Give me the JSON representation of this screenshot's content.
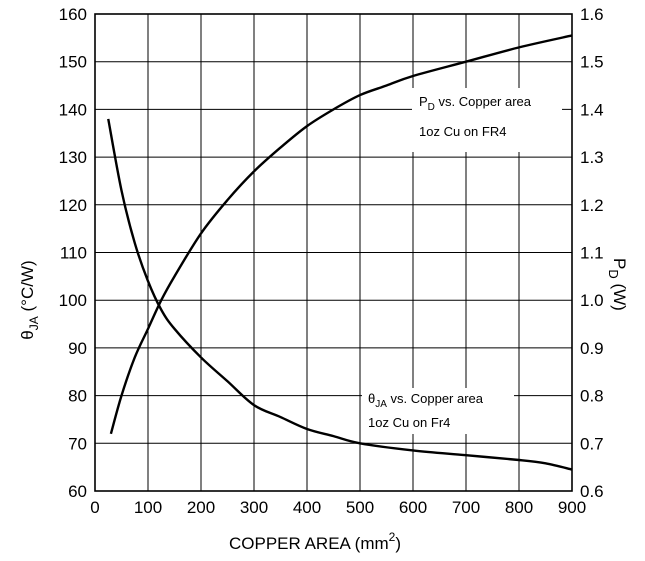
{
  "chart_data": {
    "type": "line",
    "xlabel": {
      "main": "COPPER AREA (mm",
      "sup": "2",
      "tail": ")"
    },
    "ylabel_left": {
      "main": "θ",
      "sub": "JA",
      "tail": " (°C/W)"
    },
    "ylabel_right": {
      "main": "P",
      "sub": "D",
      "tail": " (W)"
    },
    "xlim": [
      0,
      900
    ],
    "ylim_left": [
      60,
      160
    ],
    "ylim_right": [
      0.6,
      1.6
    ],
    "x_ticks": [
      "0",
      "100",
      "200",
      "300",
      "400",
      "500",
      "600",
      "700",
      "800",
      "900"
    ],
    "y_left_ticks": [
      "60",
      "70",
      "80",
      "90",
      "100",
      "110",
      "120",
      "130",
      "140",
      "150",
      "160"
    ],
    "y_right_ticks": [
      "0.6",
      "0.7",
      "0.8",
      "0.9",
      "1.0",
      "1.1",
      "1.2",
      "1.3",
      "1.4",
      "1.5",
      "1.6"
    ],
    "grid": true,
    "series": [
      {
        "axis": "left",
        "x": [
          25,
          50,
          75,
          100,
          125,
          150,
          200,
          250,
          300,
          350,
          400,
          450,
          500,
          600,
          700,
          800,
          850,
          900
        ],
        "y": [
          138,
          123,
          112,
          104,
          98,
          94,
          88,
          83,
          78,
          75.5,
          73,
          71.5,
          70,
          68.5,
          67.5,
          66.5,
          65.8,
          64.5
        ]
      },
      {
        "axis": "right",
        "x": [
          30,
          50,
          75,
          100,
          125,
          150,
          200,
          250,
          300,
          350,
          400,
          450,
          500,
          550,
          600,
          700,
          800,
          900
        ],
        "y": [
          0.72,
          0.8,
          0.88,
          0.94,
          1.0,
          1.05,
          1.14,
          1.21,
          1.27,
          1.32,
          1.365,
          1.4,
          1.43,
          1.45,
          1.47,
          1.5,
          1.53,
          1.555
        ]
      }
    ],
    "annotations": [
      {
        "main": "P",
        "sub": "D",
        "tail": " vs. Copper area",
        "line2": "1oz Cu on FR4"
      },
      {
        "main": "θ",
        "sub": "JA",
        "tail": " vs. Copper area",
        "line2": "1oz Cu on Fr4"
      }
    ]
  }
}
